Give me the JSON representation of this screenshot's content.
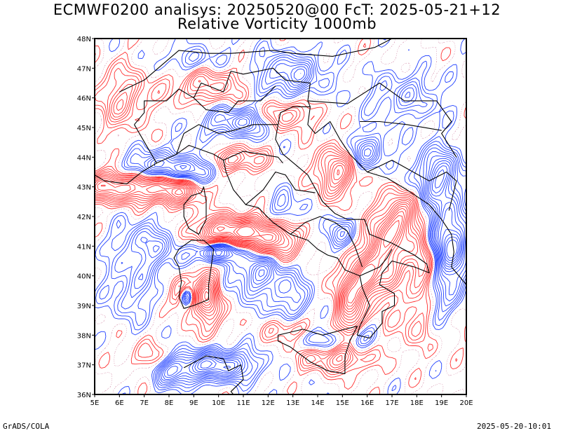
{
  "title": {
    "line1": "ECMWF0200 analisys: 20250520@00 FcT: 2025-05-21+12",
    "line2": "Relative Vorticity 1000mb"
  },
  "footer": {
    "left": "GrADS/COLA",
    "right": "2025-05-20-10:01"
  },
  "map": {
    "lon_range": [
      5,
      20
    ],
    "lat_range": [
      36,
      48
    ],
    "lon_ticks": [
      "5E",
      "6E",
      "7E",
      "8E",
      "9E",
      "10E",
      "11E",
      "12E",
      "13E",
      "14E",
      "15E",
      "16E",
      "17E",
      "18E",
      "19E",
      "20E"
    ],
    "lat_ticks": [
      "36N",
      "37N",
      "38N",
      "39N",
      "40N",
      "41N",
      "42N",
      "43N",
      "44N",
      "45N",
      "46N",
      "47N",
      "48N"
    ],
    "colors": {
      "positive": "#ff3030",
      "negative": "#2040ff",
      "coast": "#000000",
      "frame": "#000000"
    }
  }
}
